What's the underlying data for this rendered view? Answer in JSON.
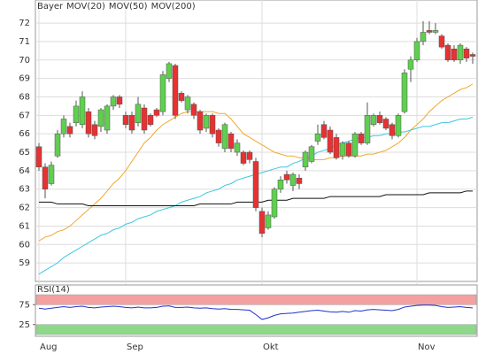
{
  "chart_data": [
    {
      "type": "candlestick",
      "name": "Bayer",
      "name_color": "#e8622c",
      "up_color": "#5fcf4f",
      "down_color": "#e63232",
      "categories": [
        "Aug",
        null,
        null,
        null,
        null,
        null,
        null,
        null,
        null,
        null,
        null,
        null,
        null,
        null,
        "Sep",
        null,
        null,
        null,
        null,
        null,
        null,
        null,
        null,
        null,
        null,
        null,
        null,
        null,
        null,
        null,
        null,
        null,
        null,
        null,
        null,
        null,
        "Okt",
        null,
        null,
        null,
        null,
        null,
        null,
        null,
        null,
        null,
        null,
        null,
        null,
        null,
        null,
        null,
        null,
        null,
        null,
        null,
        null,
        null,
        null,
        null,
        null,
        "Nov",
        null,
        null,
        null,
        null,
        null,
        null,
        null,
        null,
        null
      ],
      "open": [
        65.3,
        64.2,
        63.3,
        64.8,
        66.0,
        66.4,
        66.6,
        66.5,
        67.2,
        66.5,
        66.4,
        66.2,
        67.5,
        68.0,
        67.0,
        67.0,
        66.6,
        67.4,
        67.0,
        67.3,
        67.2,
        69.0,
        69.7,
        68.2,
        67.3,
        67.6,
        67.2,
        66.3,
        67.0,
        66.2,
        65.2,
        66.0,
        65.0,
        65.0,
        65.0,
        64.5,
        61.8,
        60.9,
        61.5,
        63.0,
        63.8,
        63.2,
        63.6,
        64.2,
        64.5,
        65.6,
        66.5,
        66.2,
        65.8,
        64.8,
        65.5,
        64.8,
        66.0,
        65.5,
        66.5,
        67.0,
        66.8,
        66.5,
        65.9,
        67.2,
        69.5,
        70.0,
        71.0,
        71.6,
        71.5,
        71.3,
        70.8,
        70.6,
        70.0,
        70.6,
        70.3
      ],
      "high": [
        65.5,
        64.4,
        64.5,
        66.2,
        67.0,
        66.6,
        67.8,
        68.3,
        67.4,
        66.7,
        67.4,
        67.6,
        68.1,
        68.1,
        67.2,
        67.2,
        68.0,
        67.6,
        67.1,
        67.4,
        69.4,
        69.9,
        69.8,
        68.3,
        68.1,
        67.7,
        67.3,
        67.1,
        67.1,
        66.3,
        66.6,
        66.1,
        65.7,
        65.1,
        65.1,
        64.7,
        62.0,
        61.8,
        63.1,
        63.7,
        64.0,
        63.9,
        63.8,
        65.1,
        65.4,
        66.5,
        66.7,
        66.4,
        66.0,
        65.6,
        65.6,
        66.1,
        66.1,
        67.7,
        67.1,
        67.2,
        66.9,
        66.6,
        67.1,
        69.5,
        70.2,
        71.2,
        72.1,
        72.1,
        72.0,
        71.4,
        70.9,
        70.8,
        70.9,
        70.7,
        70.4
      ],
      "low": [
        64.0,
        62.5,
        63.2,
        64.7,
        65.8,
        65.8,
        66.4,
        66.3,
        65.8,
        65.7,
        66.1,
        66.0,
        67.3,
        67.4,
        66.3,
        66.0,
        66.4,
        66.0,
        66.4,
        66.9,
        67.0,
        68.8,
        66.8,
        67.7,
        67.1,
        66.8,
        66.0,
        66.1,
        65.8,
        65.3,
        65.0,
        65.0,
        64.8,
        64.3,
        64.4,
        61.8,
        60.4,
        60.8,
        61.4,
        62.8,
        63.3,
        62.9,
        63.0,
        64.0,
        64.4,
        65.4,
        65.7,
        64.9,
        64.6,
        64.6,
        64.7,
        64.7,
        65.4,
        65.4,
        66.4,
        66.5,
        66.2,
        65.7,
        65.8,
        67.1,
        68.8,
        69.9,
        70.8,
        71.4,
        71.4,
        70.6,
        69.9,
        69.9,
        69.8,
        69.9,
        69.8
      ],
      "close": [
        64.2,
        63.0,
        64.3,
        66.0,
        66.8,
        66.0,
        67.5,
        68.0,
        66.0,
        65.9,
        67.3,
        67.5,
        68.0,
        67.6,
        66.5,
        66.2,
        67.6,
        66.2,
        66.5,
        67.0,
        69.2,
        69.8,
        67.0,
        67.8,
        68.0,
        67.0,
        66.2,
        67.0,
        66.0,
        65.5,
        66.5,
        65.2,
        65.5,
        64.4,
        64.6,
        62.0,
        60.6,
        61.6,
        63.0,
        63.5,
        63.5,
        63.8,
        63.3,
        65.0,
        65.3,
        66.0,
        65.8,
        65.0,
        64.7,
        65.5,
        64.8,
        66.0,
        65.5,
        67.0,
        67.0,
        66.6,
        66.3,
        65.9,
        67.0,
        69.3,
        70.0,
        71.0,
        71.5,
        71.5,
        71.6,
        70.7,
        70.0,
        70.0,
        70.8,
        70.1,
        70.2
      ],
      "series": [
        {
          "name": "MOV(20)",
          "color": "#f0a830",
          "values": [
            60.2,
            60.4,
            60.5,
            60.7,
            60.8,
            61.0,
            61.3,
            61.6,
            61.9,
            62.2,
            62.5,
            62.9,
            63.3,
            63.6,
            64.0,
            64.5,
            65.0,
            65.5,
            65.8,
            66.2,
            66.5,
            66.7,
            66.9,
            67.1,
            67.2,
            67.2,
            67.2,
            67.2,
            67.2,
            67.1,
            67.1,
            66.8,
            66.4,
            66.0,
            65.8,
            65.6,
            65.4,
            65.2,
            65.0,
            64.9,
            64.8,
            64.8,
            64.7,
            64.7,
            64.6,
            64.6,
            64.6,
            64.7,
            64.7,
            64.8,
            64.8,
            64.8,
            64.8,
            64.9,
            64.9,
            65.0,
            65.1,
            65.3,
            65.5,
            65.8,
            66.2,
            66.5,
            66.8,
            67.2,
            67.5,
            67.8,
            68.0,
            68.2,
            68.4,
            68.5,
            68.7
          ]
        },
        {
          "name": "MOV(50)",
          "color": "#3cc8e0",
          "values": [
            58.4,
            58.6,
            58.8,
            59.0,
            59.3,
            59.5,
            59.7,
            59.9,
            60.1,
            60.3,
            60.5,
            60.6,
            60.8,
            60.9,
            61.1,
            61.2,
            61.4,
            61.5,
            61.6,
            61.8,
            61.9,
            62.0,
            62.1,
            62.3,
            62.4,
            62.5,
            62.6,
            62.8,
            62.9,
            63.0,
            63.2,
            63.3,
            63.5,
            63.6,
            63.7,
            63.8,
            63.9,
            64.0,
            64.1,
            64.2,
            64.2,
            64.4,
            64.5,
            64.7,
            64.8,
            65.0,
            65.1,
            65.2,
            65.4,
            65.5,
            65.6,
            65.7,
            65.8,
            65.8,
            65.9,
            65.9,
            66.0,
            66.0,
            66.1,
            66.1,
            66.2,
            66.3,
            66.4,
            66.4,
            66.5,
            66.6,
            66.6,
            66.7,
            66.8,
            66.8,
            66.9
          ]
        },
        {
          "name": "MOV(200)",
          "color": "#111111",
          "values": [
            62.3,
            62.3,
            62.3,
            62.2,
            62.2,
            62.2,
            62.2,
            62.2,
            62.1,
            62.1,
            62.1,
            62.1,
            62.1,
            62.1,
            62.1,
            62.1,
            62.1,
            62.1,
            62.1,
            62.1,
            62.1,
            62.1,
            62.1,
            62.1,
            62.1,
            62.1,
            62.2,
            62.2,
            62.2,
            62.2,
            62.2,
            62.2,
            62.3,
            62.3,
            62.3,
            62.3,
            62.3,
            62.4,
            62.4,
            62.4,
            62.4,
            62.5,
            62.5,
            62.5,
            62.5,
            62.5,
            62.5,
            62.6,
            62.6,
            62.6,
            62.6,
            62.6,
            62.6,
            62.6,
            62.6,
            62.6,
            62.7,
            62.7,
            62.7,
            62.7,
            62.7,
            62.7,
            62.7,
            62.8,
            62.8,
            62.8,
            62.8,
            62.8,
            62.8,
            62.9,
            62.9
          ]
        }
      ],
      "ylim": [
        58,
        73.25
      ],
      "yticks": [
        59,
        60,
        61,
        62,
        63,
        64,
        65,
        66,
        67,
        68,
        69,
        70,
        71,
        72
      ],
      "grid": true
    },
    {
      "type": "line",
      "title": "RSI(14)",
      "bands": [
        {
          "from": 75,
          "to": 100,
          "color": "#f4a0a0"
        },
        {
          "from": 0,
          "to": 25,
          "color": "#8ed88a"
        }
      ],
      "series": [
        {
          "color": "#2233cc",
          "values": [
            66,
            64,
            66,
            68,
            70,
            68,
            70,
            71,
            68,
            67,
            69,
            70,
            71,
            70,
            68,
            67,
            69,
            67,
            67,
            68,
            71,
            72,
            68,
            68,
            69,
            67,
            66,
            67,
            65,
            64,
            65,
            63,
            63,
            62,
            61,
            50,
            38,
            42,
            48,
            52,
            53,
            54,
            56,
            58,
            60,
            61,
            59,
            57,
            56,
            58,
            56,
            60,
            59,
            62,
            63,
            62,
            61,
            60,
            63,
            69,
            71,
            73,
            74,
            74,
            73,
            70,
            68,
            69,
            70,
            68,
            67
          ]
        }
      ],
      "ylim": [
        0,
        100
      ],
      "yticks": [
        25,
        75
      ]
    }
  ]
}
